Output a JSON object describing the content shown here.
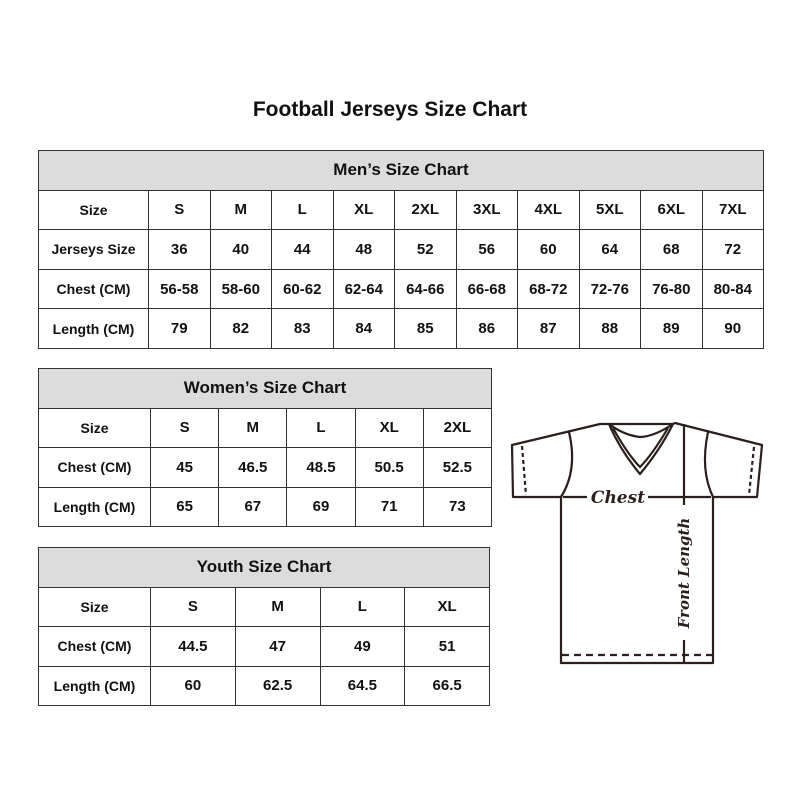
{
  "title": "Football Jerseys Size Chart",
  "men": {
    "caption": "Men’s Size Chart",
    "rows": [
      {
        "label": "Size",
        "values": [
          "S",
          "M",
          "L",
          "XL",
          "2XL",
          "3XL",
          "4XL",
          "5XL",
          "6XL",
          "7XL"
        ]
      },
      {
        "label": "Jerseys Size",
        "values": [
          "36",
          "40",
          "44",
          "48",
          "52",
          "56",
          "60",
          "64",
          "68",
          "72"
        ]
      },
      {
        "label": "Chest (CM)",
        "values": [
          "56-58",
          "58-60",
          "60-62",
          "62-64",
          "64-66",
          "66-68",
          "68-72",
          "72-76",
          "76-80",
          "80-84"
        ]
      },
      {
        "label": "Length (CM)",
        "values": [
          "79",
          "82",
          "83",
          "84",
          "85",
          "86",
          "87",
          "88",
          "89",
          "90"
        ]
      }
    ]
  },
  "women": {
    "caption": "Women’s Size Chart",
    "rows": [
      {
        "label": "Size",
        "values": [
          "S",
          "M",
          "L",
          "XL",
          "2XL"
        ]
      },
      {
        "label": "Chest (CM)",
        "values": [
          "45",
          "46.5",
          "48.5",
          "50.5",
          "52.5"
        ]
      },
      {
        "label": "Length (CM)",
        "values": [
          "65",
          "67",
          "69",
          "71",
          "73"
        ]
      }
    ]
  },
  "youth": {
    "caption": "Youth Size Chart",
    "rows": [
      {
        "label": "Size",
        "values": [
          "S",
          "M",
          "L",
          "XL"
        ]
      },
      {
        "label": "Chest (CM)",
        "values": [
          "44.5",
          "47",
          "49",
          "51"
        ]
      },
      {
        "label": "Length (CM)",
        "values": [
          "60",
          "62.5",
          "64.5",
          "66.5"
        ]
      }
    ]
  },
  "diagram": {
    "chest_label": "Chest",
    "length_label": "Front Length"
  },
  "colors": {
    "header_bg": "#dcdcdc",
    "border": "#333333",
    "outline": "#2a1f1c"
  }
}
